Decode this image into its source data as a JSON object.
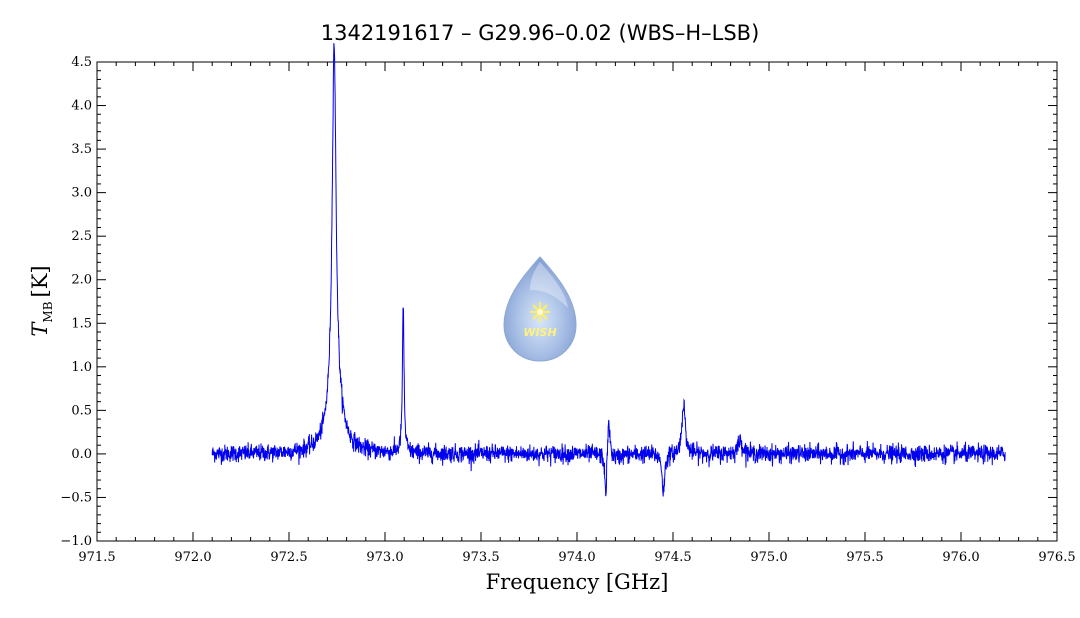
{
  "chart_data": {
    "type": "line",
    "title": "1342191617 – G29.96–0.02 (WBS–H–LSB)",
    "xlabel": "Frequency [GHz]",
    "ylabel_main": "T",
    "ylabel_sub": "MB",
    "ylabel_unit": "[K]",
    "xlim": [
      971.5,
      976.5
    ],
    "ylim": [
      -1.0,
      4.5
    ],
    "x_ticks": [
      971.5,
      972.0,
      972.5,
      973.0,
      973.5,
      974.0,
      974.5,
      975.0,
      975.5,
      976.0,
      976.5
    ],
    "x_tick_labels": [
      "971.5",
      "972.0",
      "972.5",
      "973.0",
      "973.5",
      "974.0",
      "974.5",
      "975.0",
      "975.5",
      "976.0",
      "976.5"
    ],
    "y_ticks": [
      -1.0,
      -0.5,
      0.0,
      0.5,
      1.0,
      1.5,
      2.0,
      2.5,
      3.0,
      3.5,
      4.0,
      4.5
    ],
    "y_tick_labels": [
      "−1.0",
      "−0.5",
      "0.0",
      "0.5",
      "1.0",
      "1.5",
      "2.0",
      "2.5",
      "3.0",
      "3.5",
      "4.0",
      "4.5"
    ],
    "grid": false,
    "series": [
      {
        "color": "#0000ee",
        "x_range": [
          972.1,
          976.23
        ],
        "baseline": 0.0,
        "noise_rms": 0.05,
        "features": [
          {
            "center": 972.735,
            "peak": 4.18,
            "width": 0.012,
            "type": "emission"
          },
          {
            "center": 972.74,
            "peak": 0.55,
            "width": 0.045,
            "type": "emission-wing"
          },
          {
            "center": 973.095,
            "peak": 1.7,
            "width": 0.005,
            "type": "emission"
          },
          {
            "center": 974.15,
            "peak": -0.55,
            "width": 0.006,
            "type": "absorption"
          },
          {
            "center": 974.165,
            "peak": 0.42,
            "width": 0.008,
            "type": "emission"
          },
          {
            "center": 974.2,
            "peak": -0.05,
            "width": 0.03,
            "type": "dip"
          },
          {
            "center": 974.45,
            "peak": -0.45,
            "width": 0.008,
            "type": "absorption"
          },
          {
            "center": 974.555,
            "peak": 0.6,
            "width": 0.01,
            "type": "emission"
          },
          {
            "center": 974.85,
            "peak": 0.15,
            "width": 0.015,
            "type": "emission"
          }
        ]
      }
    ]
  },
  "logo": {
    "text": "WISH"
  }
}
